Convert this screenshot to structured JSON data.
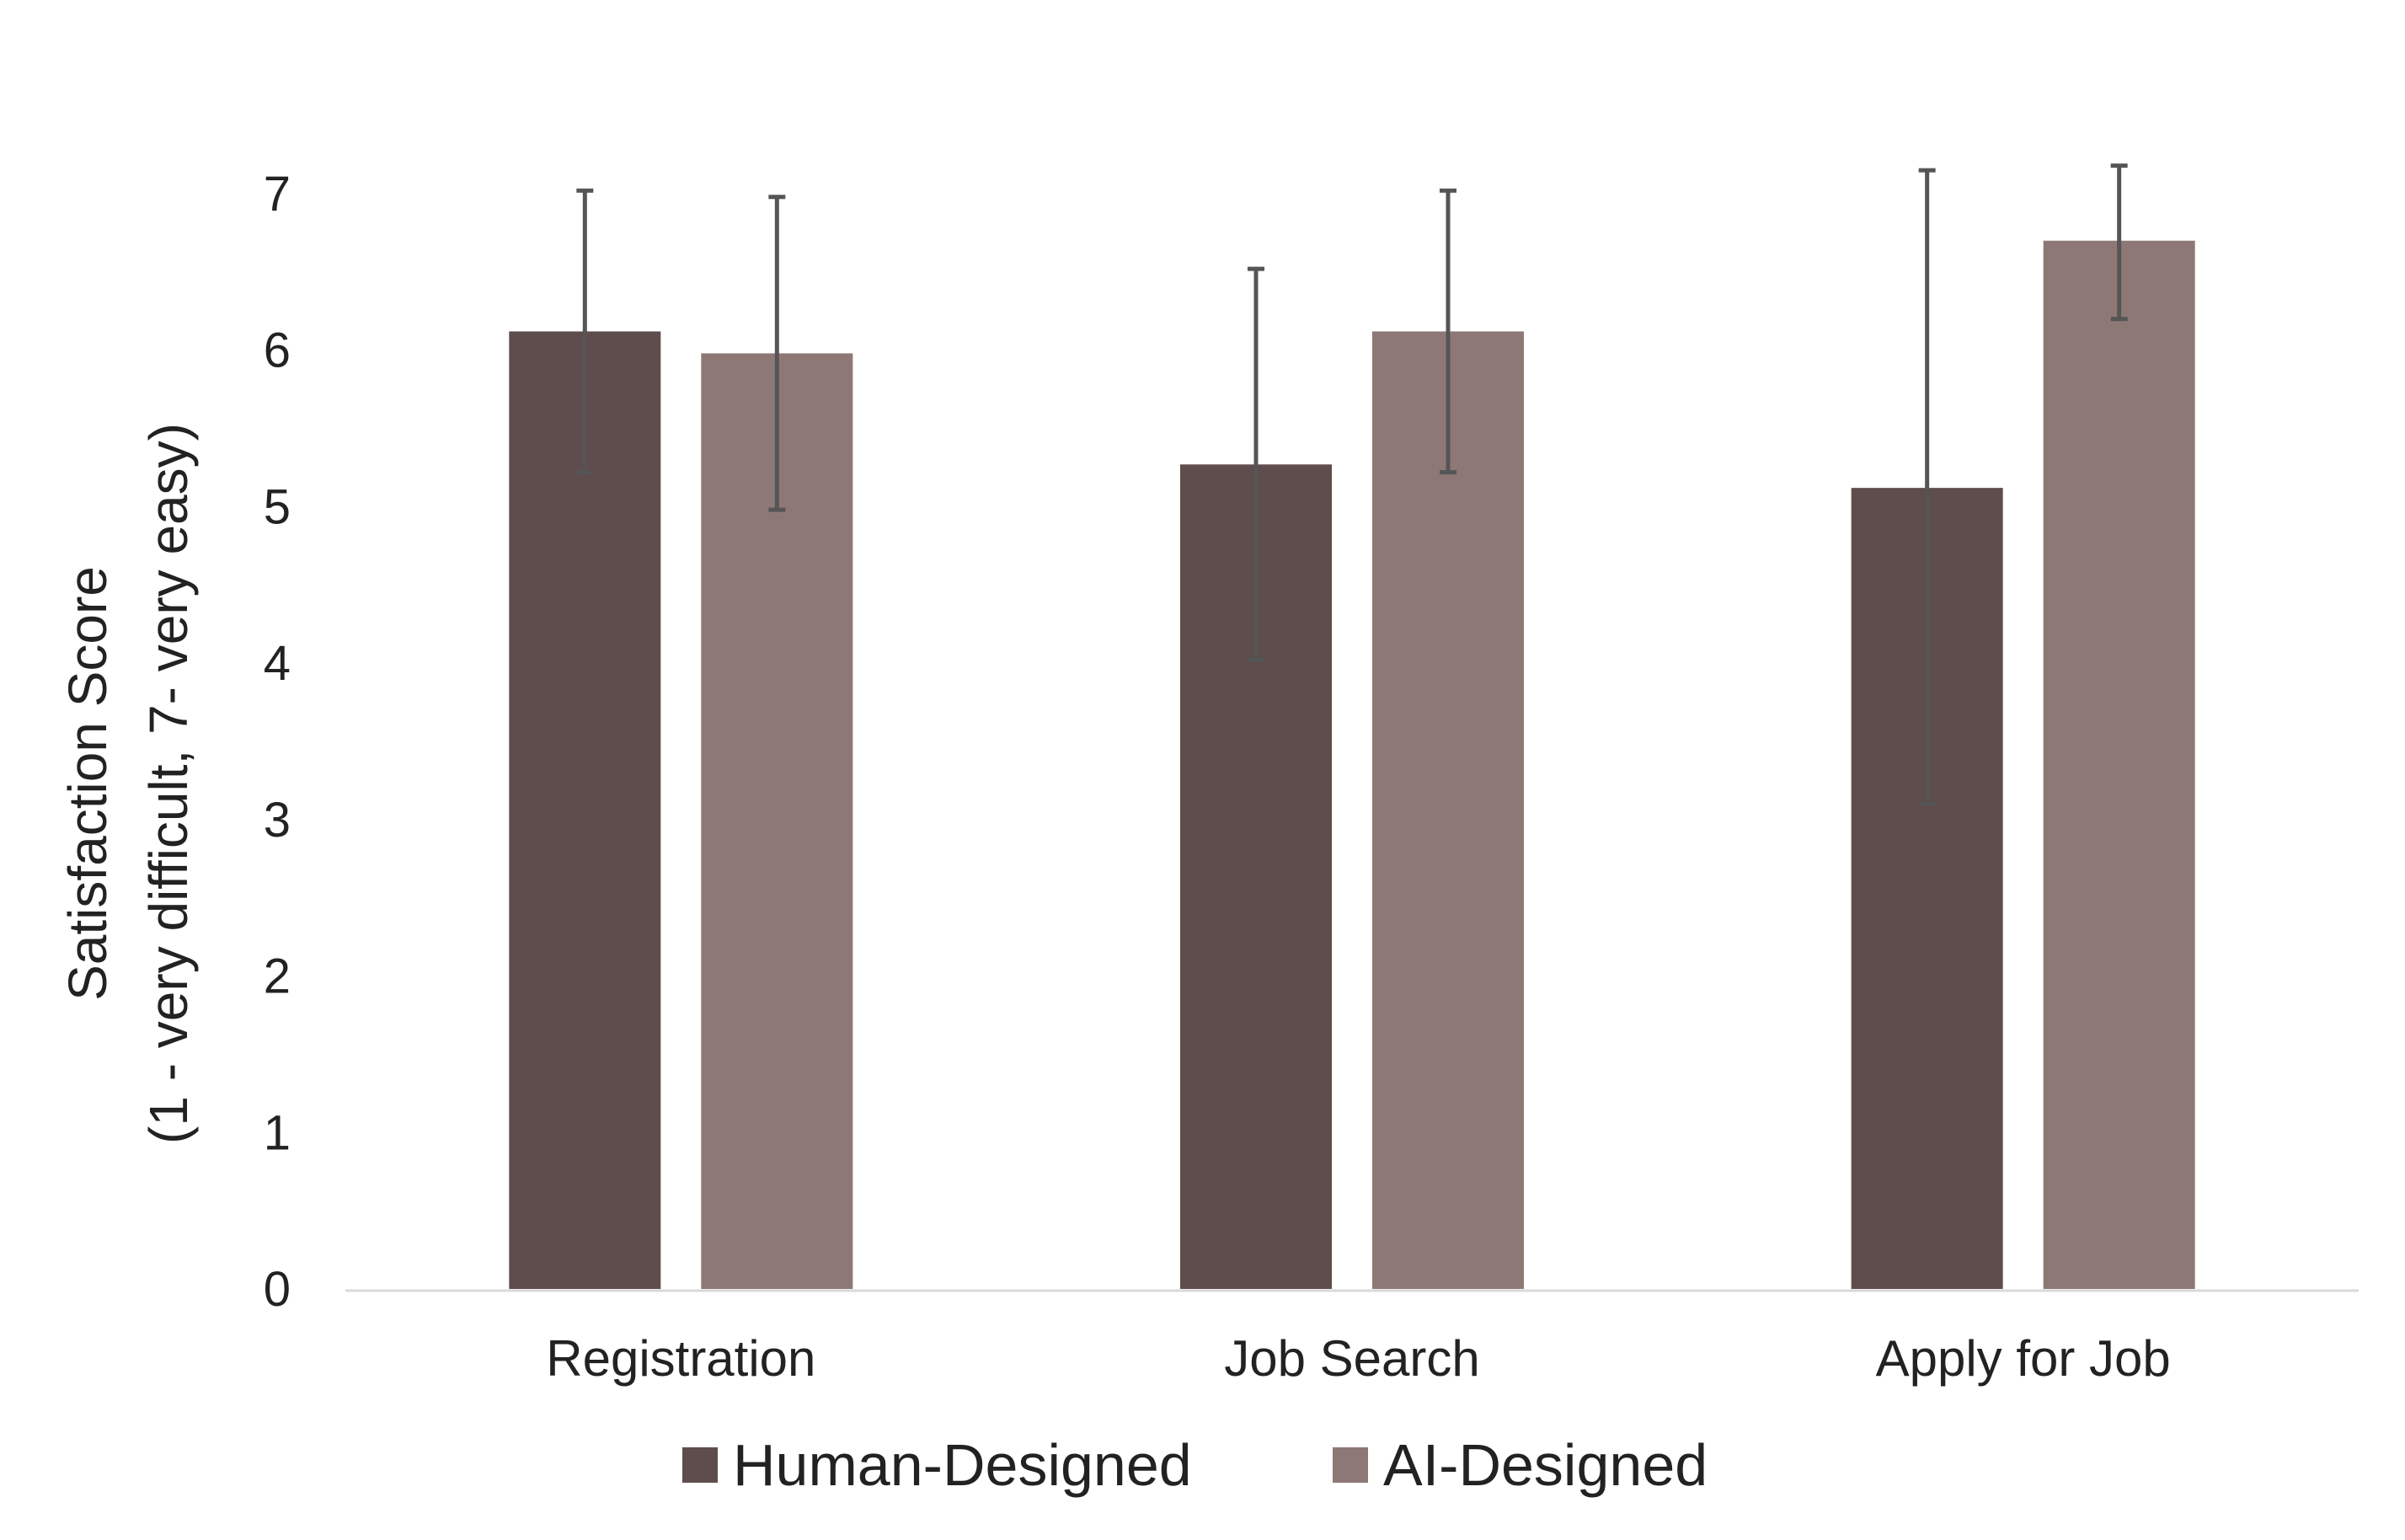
{
  "chart_data": {
    "type": "bar",
    "categories": [
      "Registration",
      "Job Search",
      "Apply for Job"
    ],
    "series": [
      {
        "name": "Human-Designed",
        "color": "#5e4d4c",
        "values": [
          6.12,
          5.27,
          5.12
        ],
        "error_low": [
          5.22,
          4.02,
          3.1
        ],
        "error_high": [
          7.02,
          6.52,
          7.15
        ]
      },
      {
        "name": "AI-Designed",
        "color": "#8e7875",
        "values": [
          5.98,
          6.12,
          6.7
        ],
        "error_low": [
          4.98,
          5.22,
          6.2
        ],
        "error_high": [
          6.98,
          7.02,
          7.18
        ]
      }
    ],
    "title": "",
    "xlabel": "",
    "ylabel_line1": "Satisfaction Score",
    "ylabel_line2": "(1 - very difficult, 7- very easy)",
    "ylim": [
      0,
      7
    ],
    "yticks": [
      "0",
      "1",
      "2",
      "3",
      "4",
      "5",
      "6",
      "7"
    ],
    "grid": false,
    "legend_position": "bottom-center",
    "error_bar_color": "#555555",
    "axis_color": "#d9d9d9"
  }
}
